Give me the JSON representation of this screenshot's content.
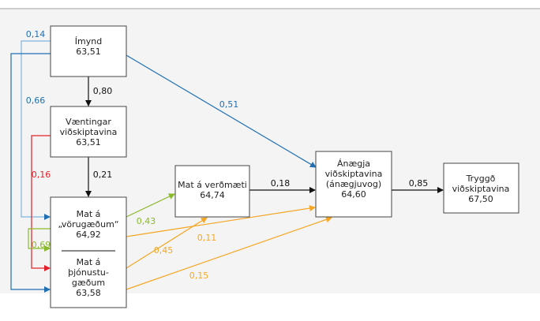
{
  "nodes": [
    {
      "lines": [
        "Ímynd"
      ],
      "value": "63,51"
    },
    {
      "lines": [
        "Væntingar",
        "viðskiptavina"
      ],
      "value": "63,51"
    },
    {
      "lines": [
        "Mat á",
        "„vörugæðum“"
      ],
      "value": "64,92"
    },
    {
      "lines": [
        "Mat á",
        "þjónustu-",
        "gæðum"
      ],
      "value": "63,58"
    },
    {
      "lines": [
        "Mat á verðmæti"
      ],
      "value": "64,74"
    },
    {
      "lines": [
        "Ánægja",
        "viðskiptavina",
        "(ánægjuvog)"
      ],
      "value": "64,60"
    },
    {
      "lines": [
        "Tryggð",
        "viðskiptavina"
      ],
      "value": "67,50"
    }
  ],
  "edges": [
    {
      "label": "0,80"
    },
    {
      "label": "0,21"
    },
    {
      "label": "0,51"
    },
    {
      "label": "0,18"
    },
    {
      "label": "0,85"
    },
    {
      "label": "0,14"
    },
    {
      "label": "0,66"
    },
    {
      "label": "0,16"
    },
    {
      "label": "0,69"
    },
    {
      "label": "0,43"
    },
    {
      "label": "0,11"
    },
    {
      "label": "0,45"
    },
    {
      "label": "0,15"
    }
  ]
}
